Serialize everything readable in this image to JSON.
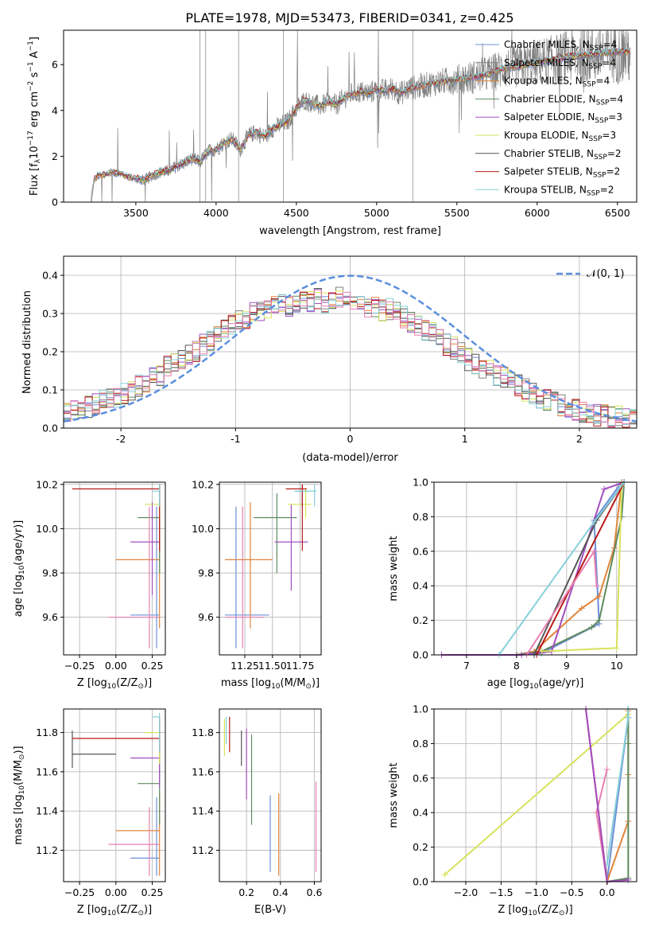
{
  "figure_title": "PLATE=1978, MJD=53473, FIBERID=0341, z=0.425",
  "colors": {
    "grey": "#808080",
    "series": [
      "#6d8fd8",
      "#808080",
      "#e0843a",
      "#5e8a5e",
      "#a34ec0",
      "#d7e25a",
      "#555555",
      "#b81a1a",
      "#86d0da",
      "#e87fb0"
    ]
  },
  "chart_data": [
    {
      "id": "spectrum",
      "type": "line",
      "title": "",
      "xlabel": "wavelength [Angstrom, rest frame]",
      "ylabel_main": "Flux [f",
      "ylabel_sub": "λ",
      "ylabel_mid": "10",
      "ylabel_exp": "−17",
      "ylabel_tail": " erg cm",
      "ylabel_exp2": "−2",
      "ylabel_tail2": " s",
      "ylabel_exp3": "−1",
      "ylabel_tail3": " A",
      "ylabel_exp4": "−1",
      "ylabel_end": "]",
      "xlim": [
        3050,
        6620
      ],
      "ylim": [
        0,
        7.5
      ],
      "xticks": [
        3500,
        4000,
        4500,
        5000,
        5500,
        6000,
        6500
      ],
      "yticks": [
        0,
        2,
        4,
        6
      ],
      "continuum_x": [
        3220,
        3240,
        3260,
        3300,
        3350,
        3400,
        3450,
        3500,
        3550,
        3600,
        3650,
        3700,
        3750,
        3800,
        3850,
        3900,
        3950,
        4000,
        4050,
        4100,
        4150,
        4200,
        4250,
        4300,
        4350,
        4400,
        4450,
        4500,
        4550,
        4600,
        4650,
        4700,
        4750,
        4800,
        4850,
        4900,
        4950,
        5000,
        5050,
        5100,
        5150,
        5200,
        5300,
        5400,
        5500,
        5600,
        5700,
        5800,
        5900,
        6000,
        6100,
        6200,
        6300,
        6400,
        6500
      ],
      "continuum_y": [
        0.0,
        1.0,
        1.15,
        1.2,
        1.3,
        1.25,
        1.1,
        1.05,
        0.95,
        1.15,
        1.3,
        1.35,
        1.55,
        1.7,
        1.9,
        1.75,
        2.2,
        2.3,
        2.6,
        2.75,
        2.3,
        2.9,
        3.05,
        2.85,
        3.2,
        3.35,
        3.55,
        4.1,
        4.45,
        4.3,
        4.2,
        4.35,
        4.25,
        4.55,
        4.75,
        4.8,
        4.75,
        4.9,
        4.85,
        4.95,
        4.75,
        4.95,
        5.1,
        5.25,
        5.35,
        5.45,
        5.6,
        5.85,
        5.95,
        6.1,
        6.2,
        6.35,
        6.4,
        6.5,
        6.55
      ],
      "series": [
        {
          "name": "Chabrier MILES, N",
          "sub": "SSP",
          "tail": "=4"
        },
        {
          "name": "Salpeter MILES, N",
          "sub": "SSP",
          "tail": "=4"
        },
        {
          "name": "Kroupa MILES, N",
          "sub": "SSP",
          "tail": "=4"
        },
        {
          "name": "Chabrier ELODIE, N",
          "sub": "SSP",
          "tail": "=4"
        },
        {
          "name": "Salpeter ELODIE, N",
          "sub": "SSP",
          "tail": "=3"
        },
        {
          "name": "Kroupa ELODIE, N",
          "sub": "SSP",
          "tail": "=3"
        },
        {
          "name": "Chabrier STELIB, N",
          "sub": "SSP",
          "tail": "=2"
        },
        {
          "name": "Salpeter STELIB, N",
          "sub": "SSP",
          "tail": "=2"
        },
        {
          "name": "Kroupa STELIB, N",
          "sub": "SSP",
          "tail": "=2"
        }
      ]
    },
    {
      "id": "residuals",
      "type": "step",
      "xlabel": "(data-model)/error",
      "ylabel": "Normed distribution",
      "xlim": [
        -2.5,
        2.5
      ],
      "ylim": [
        0,
        0.45
      ],
      "xticks": [
        -2,
        -1,
        0,
        1,
        2
      ],
      "yticks": [
        0.0,
        0.1,
        0.2,
        0.3,
        0.4
      ],
      "legend": "𝒩(0, 1)",
      "bin_width": 0.1,
      "base_values": [
        0.04,
        0.045,
        0.05,
        0.055,
        0.06,
        0.07,
        0.075,
        0.08,
        0.09,
        0.1,
        0.11,
        0.12,
        0.13,
        0.14,
        0.16,
        0.17,
        0.18,
        0.19,
        0.2,
        0.22,
        0.23,
        0.24,
        0.26,
        0.27,
        0.28,
        0.29,
        0.3,
        0.3,
        0.31,
        0.32,
        0.32,
        0.32,
        0.33,
        0.33,
        0.33,
        0.34,
        0.33,
        0.34,
        0.34,
        0.34,
        0.33,
        0.33,
        0.32,
        0.32,
        0.31,
        0.31,
        0.3,
        0.29,
        0.28,
        0.27,
        0.26,
        0.25,
        0.23,
        0.22,
        0.21,
        0.2,
        0.18,
        0.17,
        0.16,
        0.15,
        0.14,
        0.13,
        0.12,
        0.11,
        0.1,
        0.09,
        0.08,
        0.075,
        0.07,
        0.06,
        0.055,
        0.05,
        0.045,
        0.04,
        0.035,
        0.035,
        0.03,
        0.03,
        0.028,
        0.025
      ]
    },
    {
      "id": "age_vs_Z",
      "type": "errorbar",
      "xlabel": "Z [log",
      "xlabel_sub": "10",
      "xlabel_tail": "(Z/Z",
      "xlabel_sub2": "⊙",
      "xlabel_end": ")]",
      "ylabel": "age  [log",
      "ylabel_sub": "10",
      "ylabel_tail": "(age/yr)]",
      "xlim": [
        -0.36,
        0.34
      ],
      "ylim": [
        9.43,
        10.21
      ],
      "xticks": [
        -0.25,
        0.0,
        0.25
      ],
      "xticklabels": [
        "−0.25",
        "0.00",
        "0.25"
      ],
      "yticks": [
        9.6,
        9.8,
        10.0,
        10.2
      ],
      "points": [
        {
          "x": 0.3,
          "xl": 0.3,
          "xh": 0.3,
          "y": 10.18,
          "yl": 10.1,
          "yh": 10.2,
          "c": 0
        },
        {
          "x": 0.28,
          "xl": 0.1,
          "xh": 0.3,
          "y": 9.61,
          "yl": 9.46,
          "yh": 10.1,
          "c": 0
        },
        {
          "x": 0.3,
          "xl": 0.0,
          "xh": 0.3,
          "y": 9.86,
          "yl": 9.55,
          "yh": 10.12,
          "c": 2
        },
        {
          "x": 0.3,
          "xl": 0.15,
          "xh": 0.3,
          "y": 10.05,
          "yl": 9.8,
          "yh": 10.16,
          "c": 3
        },
        {
          "x": 0.25,
          "xl": 0.1,
          "xh": 0.3,
          "y": 9.94,
          "yl": 9.7,
          "yh": 10.12,
          "c": 4
        },
        {
          "x": 0.3,
          "xl": 0.2,
          "xh": 0.3,
          "y": 10.11,
          "yl": 10.05,
          "yh": 10.2,
          "c": 5
        },
        {
          "x": 0.3,
          "xl": 0.3,
          "xh": 0.3,
          "y": 10.16,
          "yl": 10.1,
          "yh": 10.2,
          "c": 6
        },
        {
          "x": 0.3,
          "xl": -0.3,
          "xh": 0.3,
          "y": 10.18,
          "yl": 9.9,
          "yh": 10.2,
          "c": 7
        },
        {
          "x": 0.3,
          "xl": 0.25,
          "xh": 0.3,
          "y": 10.17,
          "yl": 10.1,
          "yh": 10.2,
          "c": 8
        },
        {
          "x": 0.23,
          "xl": -0.05,
          "xh": 0.3,
          "y": 9.6,
          "yl": 9.46,
          "yh": 10.1,
          "c": 9
        }
      ]
    },
    {
      "id": "age_vs_mass",
      "type": "errorbar",
      "xlabel": "mass [log",
      "xlabel_sub": "10",
      "xlabel_tail": "(M/M",
      "xlabel_sub2": "⊙",
      "xlabel_end": ")]",
      "xlim": [
        11.02,
        11.94
      ],
      "ylim": [
        9.43,
        10.21
      ],
      "xticks": [
        11.25,
        11.5,
        11.75
      ],
      "xticklabels": [
        "11.25",
        "11.50",
        "11.75"
      ],
      "yticks": [
        9.6,
        9.8,
        10.0,
        10.2
      ],
      "points": [
        {
          "x": 11.17,
          "xl": 11.07,
          "xh": 11.47,
          "y": 9.61,
          "yl": 9.46,
          "yh": 10.1,
          "c": 0
        },
        {
          "x": 11.3,
          "xl": 11.07,
          "xh": 11.5,
          "y": 9.86,
          "yl": 9.55,
          "yh": 10.12,
          "c": 2
        },
        {
          "x": 11.54,
          "xl": 11.33,
          "xh": 11.72,
          "y": 10.05,
          "yl": 9.8,
          "yh": 10.16,
          "c": 3
        },
        {
          "x": 11.67,
          "xl": 11.52,
          "xh": 11.82,
          "y": 9.94,
          "yl": 9.72,
          "yh": 10.11,
          "c": 4
        },
        {
          "x": 11.8,
          "xl": 11.64,
          "xh": 11.85,
          "y": 10.11,
          "yl": 10.05,
          "yh": 10.18,
          "c": 5
        },
        {
          "x": 11.77,
          "xl": 11.7,
          "xh": 11.82,
          "y": 10.17,
          "yl": 10.1,
          "yh": 10.2,
          "c": 6
        },
        {
          "x": 11.77,
          "xl": 11.62,
          "xh": 11.81,
          "y": 10.18,
          "yl": 9.9,
          "yh": 10.2,
          "c": 7
        },
        {
          "x": 11.88,
          "xl": 11.7,
          "xh": 11.9,
          "y": 10.17,
          "yl": 10.1,
          "yh": 10.2,
          "c": 8
        },
        {
          "x": 11.23,
          "xl": 11.07,
          "xh": 11.42,
          "y": 9.6,
          "yl": 9.46,
          "yh": 10.1,
          "c": 9
        }
      ]
    },
    {
      "id": "mass_weight_vs_age",
      "type": "line",
      "xlabel": "age  [log",
      "xlabel_sub": "10",
      "xlabel_tail": "(age/yr)]",
      "ylabel": "mass weight",
      "xlim": [
        6.35,
        10.4
      ],
      "ylim": [
        0,
        1.0
      ],
      "xticks": [
        7,
        8,
        9,
        10
      ],
      "yticks": [
        0.0,
        0.2,
        0.4,
        0.6,
        0.8,
        1.0
      ],
      "yticklabels": [
        "0.0",
        "0.2",
        "0.4",
        "0.6",
        "0.8",
        "1.0"
      ],
      "series": [
        {
          "c": 0,
          "x": [
            8.0,
            8.5,
            9.65,
            9.55,
            10.1
          ],
          "y": [
            0.0,
            0.01,
            0.18,
            0.78,
            1.0
          ]
        },
        {
          "c": 2,
          "x": [
            8.0,
            8.35,
            9.3,
            9.65,
            9.95,
            10.1
          ],
          "y": [
            0.0,
            0.02,
            0.27,
            0.34,
            0.62,
            1.0
          ]
        },
        {
          "c": 3,
          "x": [
            8.0,
            8.5,
            9.5,
            9.65,
            10.1,
            10.15
          ],
          "y": [
            0.0,
            0.02,
            0.16,
            0.2,
            0.8,
            1.0
          ]
        },
        {
          "c": 4,
          "x": [
            6.5,
            8.1,
            8.7,
            9.75,
            10.15
          ],
          "y": [
            0.0,
            0.0,
            0.02,
            0.96,
            1.0
          ]
        },
        {
          "c": 5,
          "x": [
            8.5,
            10.0,
            10.1,
            10.15
          ],
          "y": [
            0.02,
            0.04,
            0.98,
            1.0
          ]
        },
        {
          "c": 6,
          "x": [
            8.35,
            9.6,
            10.15
          ],
          "y": [
            0.0,
            0.78,
            1.0
          ]
        },
        {
          "c": 7,
          "x": [
            8.4,
            10.15
          ],
          "y": [
            0.0,
            1.0
          ]
        },
        {
          "c": 8,
          "x": [
            7.65,
            9.55,
            10.15
          ],
          "y": [
            0.0,
            0.77,
            1.0
          ]
        },
        {
          "c": 9,
          "x": [
            8.2,
            9.55,
            9.6
          ],
          "y": [
            0.0,
            0.6,
            0.4
          ]
        }
      ]
    },
    {
      "id": "mass_vs_Z",
      "type": "errorbar",
      "xlabel": "Z [log",
      "xlabel_sub": "10",
      "xlabel_tail": "(Z/Z",
      "xlabel_sub2": "⊙",
      "xlabel_end": ")]",
      "ylabel": "mass [log",
      "ylabel_sub": "10",
      "ylabel_tail": "(M/M",
      "ylabel_sub2": "⊙",
      "ylabel_end": ")]",
      "xlim": [
        -0.36,
        0.34
      ],
      "ylim": [
        11.04,
        11.92
      ],
      "xticks": [
        -0.25,
        0.0,
        0.25
      ],
      "xticklabels": [
        "−0.25",
        "0.00",
        "0.25"
      ],
      "yticks": [
        11.2,
        11.4,
        11.6,
        11.8
      ],
      "points": [
        {
          "x": 0.28,
          "xl": 0.1,
          "xh": 0.3,
          "y": 11.16,
          "yl": 11.07,
          "yh": 11.47,
          "c": 0
        },
        {
          "x": 0.3,
          "xl": 0.0,
          "xh": 0.3,
          "y": 11.3,
          "yl": 11.07,
          "yh": 11.5,
          "c": 2
        },
        {
          "x": 0.3,
          "xl": 0.15,
          "xh": 0.3,
          "y": 11.54,
          "yl": 11.33,
          "yh": 11.72,
          "c": 3
        },
        {
          "x": 0.3,
          "xl": 0.1,
          "xh": 0.3,
          "y": 11.67,
          "yl": 11.52,
          "yh": 11.82,
          "c": 4
        },
        {
          "x": 0.3,
          "xl": 0.2,
          "xh": 0.3,
          "y": 11.8,
          "yl": 11.64,
          "yh": 11.85,
          "c": 5
        },
        {
          "x": -0.3,
          "xl": -0.3,
          "xh": 0.0,
          "y": 11.69,
          "yl": 11.62,
          "yh": 11.81,
          "c": 6
        },
        {
          "x": 0.3,
          "xl": -0.3,
          "xh": 0.3,
          "y": 11.77,
          "yl": 11.7,
          "yh": 11.88,
          "c": 7
        },
        {
          "x": 0.3,
          "xl": 0.25,
          "xh": 0.3,
          "y": 11.88,
          "yl": 11.7,
          "yh": 11.9,
          "c": 8
        },
        {
          "x": 0.23,
          "xl": -0.05,
          "xh": 0.3,
          "y": 11.23,
          "yl": 11.07,
          "yh": 11.42,
          "c": 9
        }
      ]
    },
    {
      "id": "mass_vs_ebv",
      "type": "errorbar",
      "xlabel": "E(B-V)",
      "xlim": [
        0.04,
        0.64
      ],
      "ylim": [
        11.04,
        11.92
      ],
      "xticks": [
        0.2,
        0.4,
        0.6
      ],
      "xticklabels": [
        "0.2",
        "0.4",
        "0.6"
      ],
      "yticks": [
        11.2,
        11.4,
        11.6,
        11.8
      ],
      "points": [
        {
          "x": 0.34,
          "y": 11.3,
          "yl": 11.09,
          "yh": 11.48,
          "c": 0
        },
        {
          "x": 0.39,
          "y": 11.3,
          "yl": 11.07,
          "yh": 11.49,
          "c": 2
        },
        {
          "x": 0.23,
          "y": 11.55,
          "yl": 11.33,
          "yh": 11.79,
          "c": 3
        },
        {
          "x": 0.2,
          "y": 11.65,
          "yl": 11.46,
          "yh": 11.82,
          "c": 4
        },
        {
          "x": 0.07,
          "y": 11.77,
          "yl": 11.68,
          "yh": 11.87,
          "c": 5
        },
        {
          "x": 0.17,
          "y": 11.72,
          "yl": 11.63,
          "yh": 11.81,
          "c": 6
        },
        {
          "x": 0.1,
          "y": 11.78,
          "yl": 11.7,
          "yh": 11.88,
          "c": 7
        },
        {
          "x": 0.08,
          "y": 11.82,
          "yl": 11.74,
          "yh": 11.88,
          "c": 8
        },
        {
          "x": 0.61,
          "y": 11.32,
          "yl": 11.09,
          "yh": 11.55,
          "c": 9
        }
      ]
    },
    {
      "id": "mass_weight_vs_Z",
      "type": "line",
      "xlabel": "Z [log",
      "xlabel_sub": "10",
      "xlabel_tail": "(Z/Z",
      "xlabel_sub2": "⊙",
      "xlabel_end": ")]",
      "ylabel": "mass weight",
      "xlim": [
        -2.45,
        0.42
      ],
      "ylim": [
        0,
        1.0
      ],
      "xticks": [
        -2.0,
        -1.5,
        -1.0,
        -0.5,
        0.0
      ],
      "xticklabels": [
        "−2.0",
        "−1.5",
        "−1.0",
        "−0.5",
        "0.0"
      ],
      "yticks": [
        0.0,
        0.2,
        0.4,
        0.6,
        0.8,
        1.0
      ],
      "yticklabels": [
        "0.0",
        "0.2",
        "0.4",
        "0.6",
        "0.8",
        "1.0"
      ],
      "series": [
        {
          "c": 5,
          "x": [
            -2.3,
            0.3
          ],
          "y": [
            0.04,
            0.97
          ]
        },
        {
          "c": 0,
          "x": [
            0.0,
            0.3,
            0.3
          ],
          "y": [
            0.0,
            0.95,
            1.0
          ]
        },
        {
          "c": 2,
          "x": [
            0.0,
            0.3,
            0.3,
            0.3
          ],
          "y": [
            0.0,
            0.35,
            0.62,
            0.99
          ]
        },
        {
          "c": 3,
          "x": [
            0.0,
            0.3,
            0.3,
            0.3
          ],
          "y": [
            0.0,
            0.02,
            0.8,
            1.0
          ]
        },
        {
          "c": 8,
          "x": [
            0.0,
            0.3,
            0.3
          ],
          "y": [
            0.1,
            0.95,
            1.0
          ]
        },
        {
          "c": 9,
          "x": [
            0.0,
            -0.15,
            0.0
          ],
          "y": [
            0.0,
            0.4,
            0.65
          ]
        },
        {
          "c": 7,
          "x": [
            -0.3,
            0.0
          ],
          "y": [
            1.0,
            0.0
          ]
        },
        {
          "c": 4,
          "x": [
            -0.3,
            0.0,
            0.3
          ],
          "y": [
            1.0,
            0.0,
            0.01
          ]
        }
      ]
    }
  ]
}
